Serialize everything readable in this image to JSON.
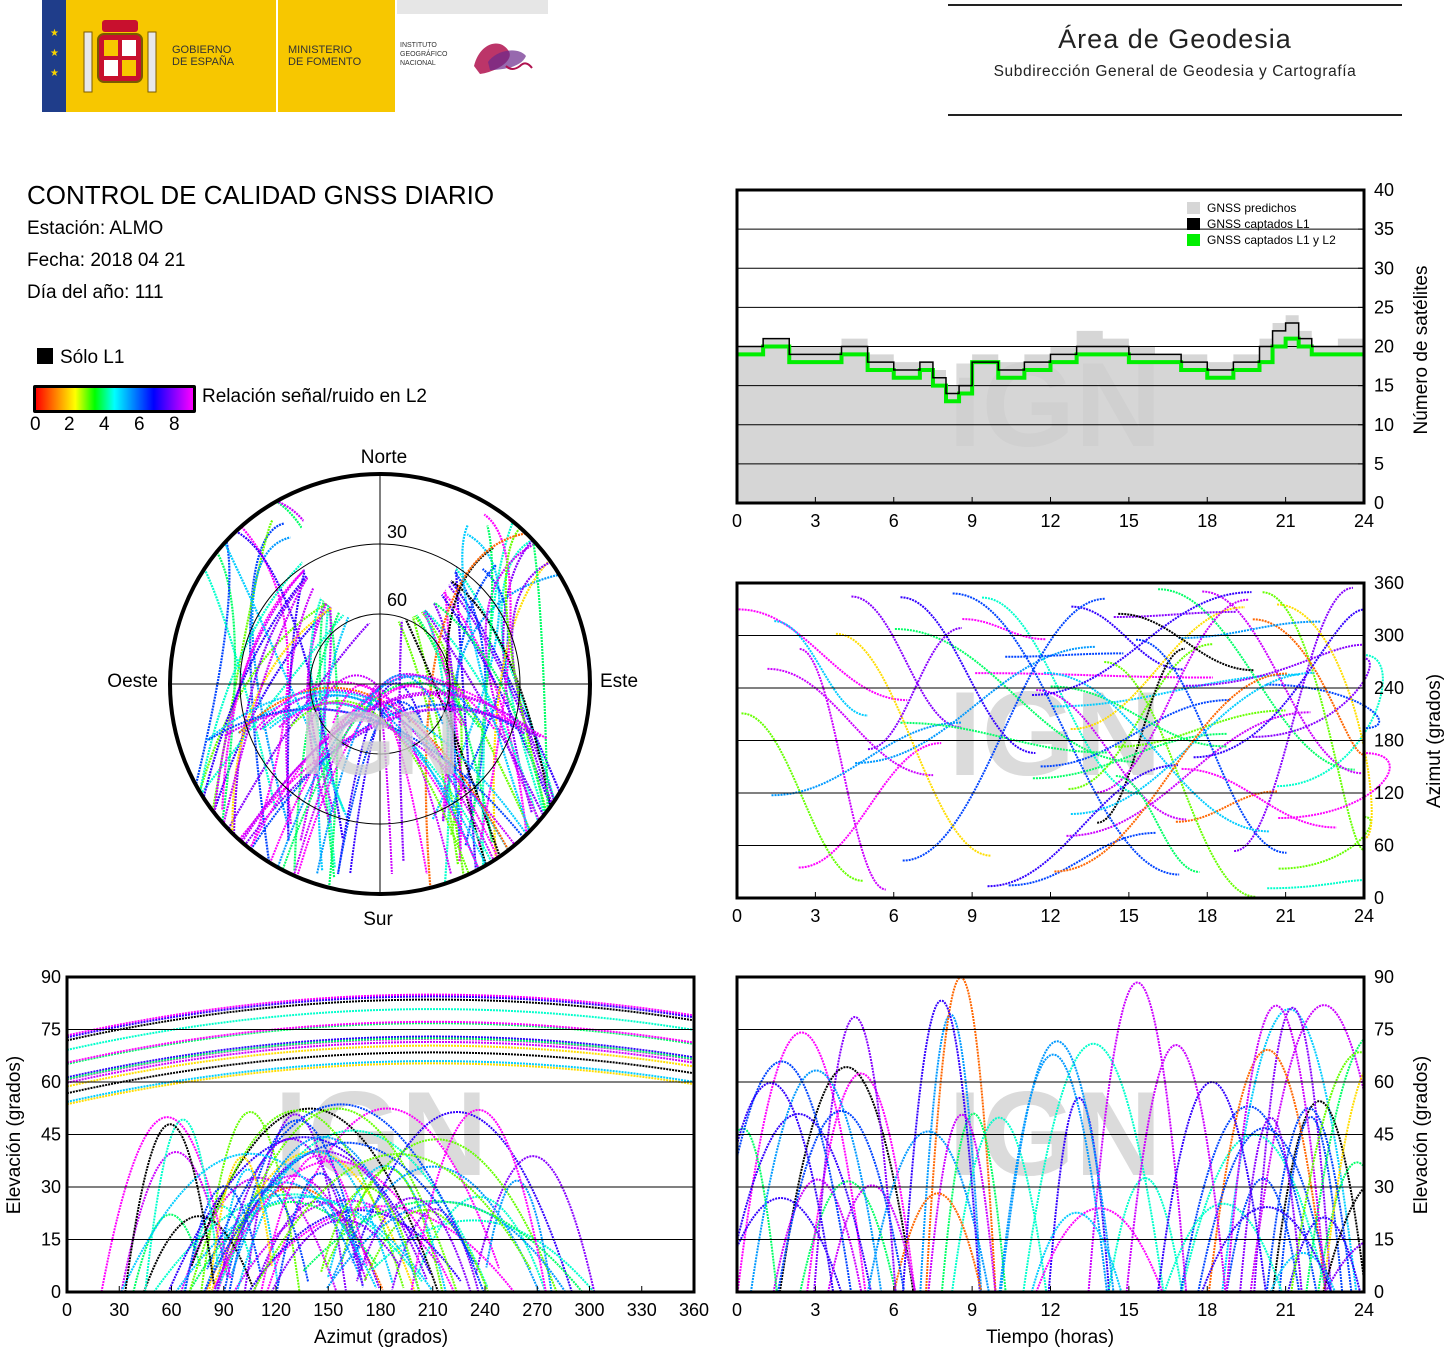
{
  "header": {
    "gov_line1": "GOBIERNO",
    "gov_line2": "DE ESPAÑA",
    "ministry_line1": "MINISTERIO",
    "ministry_line2": "DE FOMENTO",
    "institute_line1": "INSTITUTO",
    "institute_line2": "GEOGRÁFICO",
    "institute_line3": "NACIONAL",
    "area_title": "Área de Geodesia",
    "area_subtitle": "Subdirección General de Geodesia y Cartografía"
  },
  "info": {
    "title": "CONTROL DE CALIDAD GNSS DIARIO",
    "station": "Estación: ALMO",
    "date": "Fecha: 2018 04 21",
    "doy": "Día del año: 111",
    "legend_l1": "Sólo L1",
    "colorbar_label": "Relación señal/ruido en L2",
    "colorbar_ticks": [
      "0",
      "2",
      "4",
      "6",
      "8"
    ]
  },
  "watermark": "IGN",
  "colors": {
    "predicted": "#d6d6d6",
    "l1": "#000000",
    "l1l2": "#00ee00"
  },
  "chart_data": [
    {
      "type": "area",
      "id": "satellite_count",
      "ylabel": "Número de satélites",
      "xlim": [
        0,
        24
      ],
      "ylim": [
        0,
        40
      ],
      "xticks": [
        "0",
        "3",
        "6",
        "9",
        "12",
        "15",
        "18",
        "21",
        "24"
      ],
      "yticks": [
        "0",
        "5",
        "10",
        "15",
        "20",
        "25",
        "30",
        "35",
        "40"
      ],
      "grid": true,
      "legend_position": "top-right",
      "legend": [
        "GNSS predichos",
        "GNSS captados L1",
        "GNSS captados L1 y L2"
      ],
      "x": [
        0,
        1,
        2,
        3,
        4,
        5,
        6,
        7,
        7.5,
        8,
        8.5,
        9,
        10,
        11,
        12,
        13,
        14,
        15,
        16,
        17,
        18,
        19,
        20,
        20.5,
        21,
        21.5,
        22,
        23,
        24
      ],
      "series": [
        {
          "name": "GNSS predichos",
          "values": [
            20,
            21,
            20,
            20,
            21,
            19,
            18,
            18,
            17,
            15,
            16,
            19,
            18,
            19,
            20,
            22,
            21,
            20,
            19,
            19,
            18,
            19,
            21,
            23,
            24,
            22,
            20,
            21,
            20
          ]
        },
        {
          "name": "GNSS captados L1",
          "values": [
            20,
            21,
            19,
            19,
            20,
            18,
            17,
            18,
            16,
            14,
            15,
            18,
            17,
            18,
            19,
            20,
            20,
            19,
            19,
            18,
            17,
            18,
            20,
            22,
            23,
            21,
            20,
            20,
            19
          ]
        },
        {
          "name": "GNSS captados L1 y L2",
          "values": [
            19,
            20,
            18,
            18,
            19,
            17,
            16,
            17,
            15,
            13,
            14,
            18,
            16,
            17,
            18,
            19,
            19,
            18,
            18,
            17,
            16,
            17,
            18,
            20,
            21,
            20,
            19,
            19,
            19
          ]
        }
      ]
    },
    {
      "type": "scatter",
      "id": "skyplot",
      "labels": {
        "north": "Norte",
        "south": "Sur",
        "east": "Este",
        "west": "Oeste"
      },
      "rings": [
        "30",
        "60"
      ]
    },
    {
      "type": "scatter",
      "id": "azimuth_vs_time",
      "ylabel": "Azimut (grados)",
      "xlim": [
        0,
        24
      ],
      "ylim": [
        0,
        360
      ],
      "xticks": [
        "0",
        "3",
        "6",
        "9",
        "12",
        "15",
        "18",
        "21",
        "24"
      ],
      "yticks": [
        "0",
        "60",
        "120",
        "180",
        "240",
        "300",
        "360"
      ],
      "grid": true
    },
    {
      "type": "scatter",
      "id": "elevation_vs_azimuth",
      "xlabel": "Azimut (grados)",
      "ylabel": "Elevación (grados)",
      "xlim": [
        0,
        360
      ],
      "ylim": [
        0,
        90
      ],
      "xticks": [
        "0",
        "30",
        "60",
        "90",
        "120",
        "150",
        "180",
        "210",
        "240",
        "270",
        "300",
        "330",
        "360"
      ],
      "yticks": [
        "0",
        "15",
        "30",
        "45",
        "60",
        "75",
        "90"
      ],
      "grid": true
    },
    {
      "type": "scatter",
      "id": "elevation_vs_time",
      "xlabel": "Tiempo (horas)",
      "ylabel": "Elevación (grados)",
      "xlim": [
        0,
        24
      ],
      "ylim": [
        0,
        90
      ],
      "xticks": [
        "0",
        "3",
        "6",
        "9",
        "12",
        "15",
        "18",
        "21",
        "24"
      ],
      "yticks": [
        "0",
        "15",
        "30",
        "45",
        "60",
        "75",
        "90"
      ],
      "grid": true
    }
  ]
}
